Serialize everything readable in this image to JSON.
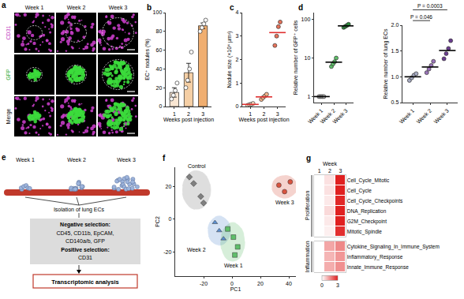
{
  "panel_a": {
    "label": "a",
    "columns": [
      "Week 1",
      "Week 2",
      "Week 3"
    ],
    "rows": [
      "CD31",
      "GFP",
      "Merge"
    ]
  },
  "panel_e": {
    "label": "e",
    "stages": [
      "Week 1",
      "Week 2",
      "Week 3"
    ],
    "step": "Isolation of lung ECs",
    "selection": [
      "Negative selection:",
      "CD45, CD11b, EpCAM,",
      "CD140a/b, GFP",
      "Positive selection:",
      "CD31"
    ],
    "result": "Transcriptomic analysis"
  },
  "chart_data": [
    {
      "label": "b",
      "type": "bar",
      "categories": [
        "1",
        "2",
        "3"
      ],
      "values": [
        15,
        36,
        86
      ],
      "errors": [
        5,
        10,
        3
      ],
      "points": [
        [
          8,
          12,
          17,
          25
        ],
        [
          20,
          28,
          40,
          58
        ],
        [
          80,
          84,
          88,
          92
        ]
      ],
      "colors": [
        "#f9e6d2",
        "#f5cfa5",
        "#f0ae70"
      ],
      "x_label": "Weeks post injection",
      "y_label": "EC⁺ nodules (%)",
      "ylim": [
        0,
        100
      ],
      "yticks": [
        0,
        20,
        40,
        60,
        80,
        100
      ]
    },
    {
      "label": "c",
      "type": "scatter",
      "categories": [
        "1",
        "2",
        "3"
      ],
      "points": [
        [
          0.05,
          0.08,
          0.1,
          0.13
        ],
        [
          0.3,
          0.38,
          0.45,
          0.52
        ],
        [
          2.6,
          3.0,
          3.4,
          3.6
        ]
      ],
      "means": [
        0.09,
        0.41,
        3.15
      ],
      "color": "#e03030",
      "colors": [
        "#f7dcc4",
        "#f2b38c",
        "#e8735a"
      ],
      "x_label": "Weeks post injection",
      "y_label": "Nodule size (×10⁴ μm²)",
      "ylim": [
        0,
        4
      ],
      "yticks": [
        0,
        1,
        2,
        3,
        4
      ]
    },
    {
      "label": "d",
      "type": "scatter",
      "log": "y",
      "categories": [
        "Week 1",
        "Week 2",
        "Week 3"
      ],
      "points": [
        [
          1,
          1,
          1,
          1
        ],
        [
          6,
          7,
          8,
          10
        ],
        [
          62,
          66,
          70,
          75
        ]
      ],
      "means": [
        1,
        7.8,
        68
      ],
      "colors": [
        "#b0b0b0",
        "#5fbf6a",
        "#2e8b3e"
      ],
      "y_label": "Relative number of GFP⁺ cells",
      "ylim": [
        0.7,
        150
      ],
      "yticks": [
        1,
        10,
        100
      ]
    },
    {
      "type": "scatter",
      "categories": [
        "Week 1",
        "Week 2",
        "Week 3"
      ],
      "points": [
        [
          0.93,
          0.98,
          1.03,
          1.06
        ],
        [
          1.08,
          1.15,
          1.22,
          1.3
        ],
        [
          1.35,
          1.45,
          1.55,
          1.7
        ]
      ],
      "means": [
        1.0,
        1.19,
        1.51
      ],
      "colors": [
        "#a7abc2",
        "#9a74b8",
        "#6a3d8f"
      ],
      "y_label": "Relative number of lung ECs",
      "ylim": [
        0.5,
        2.0
      ],
      "yticks": [
        0.5,
        {
          "value": 1,
          "label": "1.0"
        },
        1.5,
        {
          "value": 2,
          "label": "2.0"
        }
      ],
      "comparisons": [
        {
          "from": 0,
          "to": 1,
          "label": "P = 0.046"
        },
        {
          "from": 0,
          "to": 2,
          "label": "P = 0.0003"
        }
      ]
    },
    {
      "label": "f",
      "type": "scatter",
      "x_label": "PC1",
      "y_label": "PC2",
      "xlim": [
        -40,
        45
      ],
      "xticks": [
        -20,
        0,
        20,
        40
      ],
      "ylim": [
        -35,
        32
      ],
      "yticks": [
        -20,
        0,
        20
      ],
      "series": [
        {
          "name": "Control",
          "color": "#808080",
          "marker": "diamond",
          "x": [
            -30,
            -27,
            -22,
            -20
          ],
          "y": [
            26,
            22,
            14,
            10
          ]
        },
        {
          "name": "Week 2",
          "color": "#5b8fd0",
          "marker": "triangle-up",
          "x": [
            -12,
            -9,
            -6
          ],
          "y": [
            -2,
            -7,
            -12
          ]
        },
        {
          "name": "Week 1",
          "color": "#5fbf6a",
          "marker": "square",
          "x": [
            -3,
            1,
            4,
            2
          ],
          "y": [
            -6,
            -11,
            -17,
            -22
          ]
        },
        {
          "name": "Week 3",
          "color": "#d9533f",
          "marker": "circle",
          "x": [
            33,
            37,
            41
          ],
          "y": [
            21,
            17,
            23
          ]
        }
      ]
    },
    {
      "label": "g",
      "type": "heatmap",
      "x_label": "Week",
      "categories": [
        "1",
        "2",
        "3"
      ],
      "groups": [
        {
          "name": "Proliferation",
          "rows": [
            "Cell_Cycle_Mitotic",
            "Cell_Cycle",
            "Cell_Cycle_Checkpoints",
            "DNA_Replication",
            "G2M_Checkpoint",
            "Mitotic_Spindle"
          ],
          "values": [
            [
              0,
              0.4,
              3
            ],
            [
              0,
              0.4,
              3
            ],
            [
              0,
              0.3,
              2.9
            ],
            [
              0,
              0.5,
              3
            ],
            [
              0,
              0.3,
              3
            ],
            [
              0,
              0.2,
              2.8
            ]
          ]
        },
        {
          "name": "Inflammation",
          "rows": [
            "Cytokine_Signaling_In_Immune_System",
            "Inflammatory_Response",
            "Innate_Immune_Response"
          ],
          "values": [
            [
              0,
              1.2,
              1.6
            ],
            [
              0,
              1.0,
              1.4
            ],
            [
              0,
              1.1,
              1.5
            ]
          ]
        }
      ],
      "colors": [
        "#ffffff",
        "#e02020"
      ],
      "zlim": [
        0,
        3
      ],
      "zticks": [
        0,
        3
      ]
    }
  ]
}
